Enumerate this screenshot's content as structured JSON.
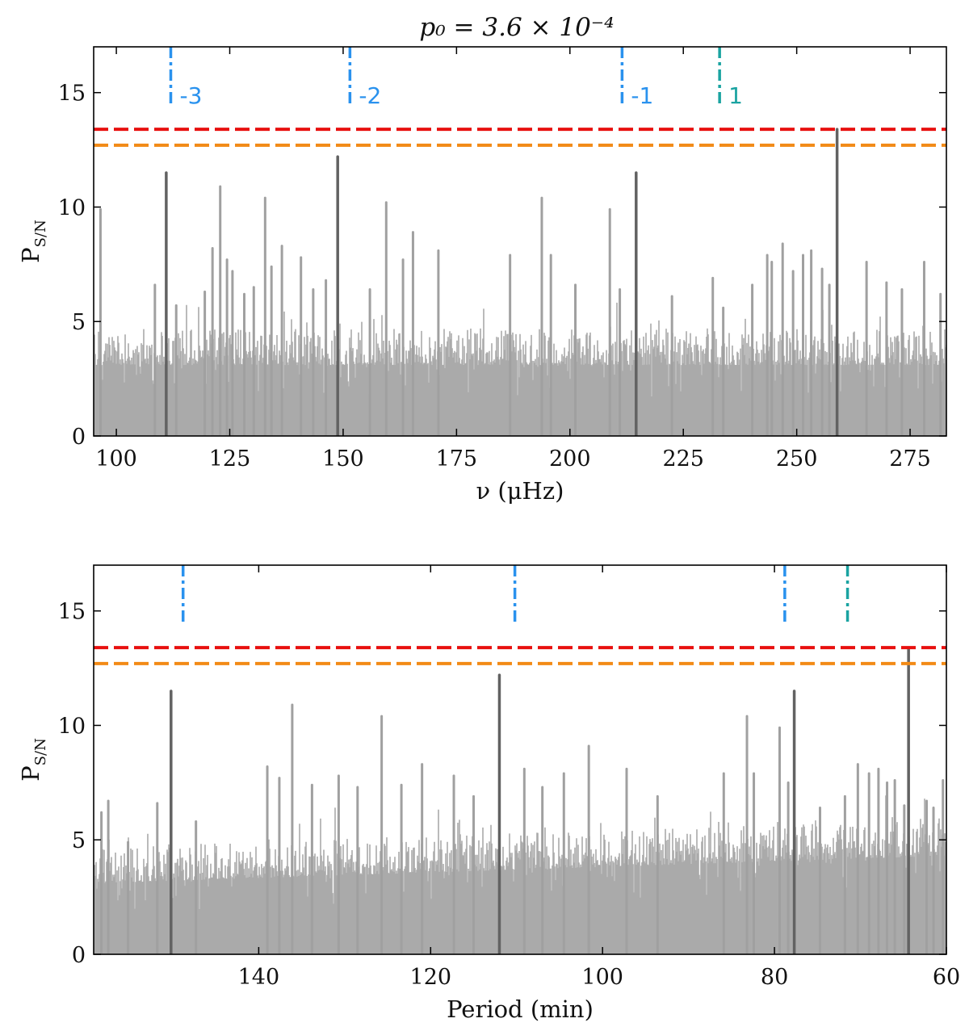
{
  "figure_title": "p₀ = 3.6 × 10⁻⁴",
  "colors": {
    "noise": "#aaaaaa",
    "peak_light": "#a0a0a0",
    "peak_dark": "#626262",
    "threshold_high": "#e8100f",
    "threshold_low": "#f28a16",
    "marker_negative": "#2a92ee",
    "marker_positive": "#1aa3a1"
  },
  "chart_data": [
    {
      "id": "frequency",
      "type": "line",
      "xlabel": "ν (μHz)",
      "ylabel": "P",
      "ylabel_sub": "S/N",
      "xlim": [
        95,
        283
      ],
      "ylim": [
        0,
        17
      ],
      "x_reversed": false,
      "x_ticks": [
        100,
        125,
        150,
        175,
        200,
        225,
        250,
        275
      ],
      "y_ticks": [
        0,
        5,
        10,
        15
      ],
      "thresholds": [
        {
          "value": 13.4,
          "color": "threshold_high"
        },
        {
          "value": 12.7,
          "color": "threshold_low"
        }
      ],
      "markers": [
        {
          "x": 112,
          "label": "-3",
          "color": "marker_negative"
        },
        {
          "x": 151.5,
          "label": "-2",
          "color": "marker_negative"
        },
        {
          "x": 211.5,
          "label": "-1",
          "color": "marker_negative"
        },
        {
          "x": 233,
          "label": "1",
          "color": "marker_positive"
        }
      ],
      "dark_peaks": [
        {
          "x": 111,
          "y": 11.5
        },
        {
          "x": 148.8,
          "y": 12.2
        },
        {
          "x": 214.6,
          "y": 11.5
        },
        {
          "x": 258.9,
          "y": 13.4
        }
      ],
      "light_peaks": [
        {
          "x": 96.5,
          "y": 9.9
        },
        {
          "x": 108.5,
          "y": 6.6
        },
        {
          "x": 113.2,
          "y": 5.7
        },
        {
          "x": 119.5,
          "y": 6.3
        },
        {
          "x": 121.2,
          "y": 8.2
        },
        {
          "x": 122.9,
          "y": 10.9
        },
        {
          "x": 124.4,
          "y": 7.7
        },
        {
          "x": 125.6,
          "y": 7.2
        },
        {
          "x": 128.2,
          "y": 6.2
        },
        {
          "x": 130.3,
          "y": 6.5
        },
        {
          "x": 132.8,
          "y": 10.4
        },
        {
          "x": 134.2,
          "y": 7.4
        },
        {
          "x": 136.5,
          "y": 8.3
        },
        {
          "x": 140.7,
          "y": 7.8
        },
        {
          "x": 143.4,
          "y": 6.4
        },
        {
          "x": 146.2,
          "y": 6.8
        },
        {
          "x": 155.9,
          "y": 6.4
        },
        {
          "x": 159.5,
          "y": 10.2
        },
        {
          "x": 163.2,
          "y": 7.7
        },
        {
          "x": 165.4,
          "y": 8.9
        },
        {
          "x": 171,
          "y": 8.1
        },
        {
          "x": 186.8,
          "y": 7.9
        },
        {
          "x": 193.8,
          "y": 10.4
        },
        {
          "x": 195.8,
          "y": 7.9
        },
        {
          "x": 201.2,
          "y": 6.6
        },
        {
          "x": 208.8,
          "y": 9.9
        },
        {
          "x": 211,
          "y": 6.4
        },
        {
          "x": 222.5,
          "y": 6.1
        },
        {
          "x": 231.5,
          "y": 6.9
        },
        {
          "x": 233.8,
          "y": 5.6
        },
        {
          "x": 240.2,
          "y": 6.6
        },
        {
          "x": 243.5,
          "y": 7.9
        },
        {
          "x": 244.5,
          "y": 7.6
        },
        {
          "x": 246.9,
          "y": 8.4
        },
        {
          "x": 249.2,
          "y": 7.2
        },
        {
          "x": 251.4,
          "y": 7.9
        },
        {
          "x": 253.2,
          "y": 8.1
        },
        {
          "x": 255.6,
          "y": 7.3
        },
        {
          "x": 257.2,
          "y": 6.6
        },
        {
          "x": 265.4,
          "y": 7.6
        },
        {
          "x": 269.8,
          "y": 6.7
        },
        {
          "x": 273.2,
          "y": 6.4
        },
        {
          "x": 278.1,
          "y": 7.6
        },
        {
          "x": 281.7,
          "y": 6.2
        }
      ],
      "baseline": {
        "x_start": 95,
        "x_end": 283,
        "level": 3.8
      }
    },
    {
      "id": "period",
      "type": "line",
      "xlabel": "Period (min)",
      "ylabel": "P",
      "ylabel_sub": "S/N",
      "xlim": [
        159.2,
        60
      ],
      "ylim": [
        0,
        17
      ],
      "x_reversed": true,
      "x_ticks": [
        140,
        120,
        100,
        80,
        60
      ],
      "y_ticks": [
        0,
        5,
        10,
        15
      ],
      "thresholds": [
        {
          "value": 13.4,
          "color": "threshold_high"
        },
        {
          "value": 12.7,
          "color": "threshold_low"
        }
      ],
      "markers": [
        {
          "x": 148.8,
          "label": "",
          "color": "marker_negative"
        },
        {
          "x": 110.2,
          "label": "",
          "color": "marker_negative"
        },
        {
          "x": 78.8,
          "label": "",
          "color": "marker_negative"
        },
        {
          "x": 71.5,
          "label": "",
          "color": "marker_positive"
        }
      ],
      "dark_peaks": [
        {
          "x": 150.2,
          "y": 11.5
        },
        {
          "x": 112,
          "y": 12.2
        },
        {
          "x": 77.7,
          "y": 11.5
        },
        {
          "x": 64.4,
          "y": 13.4
        }
      ],
      "light_peaks": [
        {
          "x": 158.3,
          "y": 6.2
        },
        {
          "x": 157.5,
          "y": 6.7
        },
        {
          "x": 155.2,
          "y": 4.9
        },
        {
          "x": 151.8,
          "y": 6.6
        },
        {
          "x": 147.3,
          "y": 5.8
        },
        {
          "x": 139,
          "y": 8.2
        },
        {
          "x": 137.6,
          "y": 7.7
        },
        {
          "x": 136.1,
          "y": 10.9
        },
        {
          "x": 133.8,
          "y": 7.4
        },
        {
          "x": 130.7,
          "y": 7.8
        },
        {
          "x": 128.5,
          "y": 7.3
        },
        {
          "x": 125.7,
          "y": 10.4
        },
        {
          "x": 123.4,
          "y": 7.4
        },
        {
          "x": 121,
          "y": 8.3
        },
        {
          "x": 117.3,
          "y": 7.8
        },
        {
          "x": 115,
          "y": 6.9
        },
        {
          "x": 109.1,
          "y": 8.1
        },
        {
          "x": 107,
          "y": 7.3
        },
        {
          "x": 104.5,
          "y": 7.9
        },
        {
          "x": 101.6,
          "y": 9.1
        },
        {
          "x": 97.2,
          "y": 8.1
        },
        {
          "x": 93.6,
          "y": 6.9
        },
        {
          "x": 85.9,
          "y": 7.9
        },
        {
          "x": 83.2,
          "y": 10.4
        },
        {
          "x": 82.4,
          "y": 7.9
        },
        {
          "x": 79.4,
          "y": 9.9
        },
        {
          "x": 78.4,
          "y": 7.5
        },
        {
          "x": 74.7,
          "y": 6.4
        },
        {
          "x": 71.8,
          "y": 6.9
        },
        {
          "x": 70.3,
          "y": 8.3
        },
        {
          "x": 69,
          "y": 7.9
        },
        {
          "x": 67.9,
          "y": 8.1
        },
        {
          "x": 66.9,
          "y": 7.5
        },
        {
          "x": 66,
          "y": 7.6
        },
        {
          "x": 64.9,
          "y": 6.5
        },
        {
          "x": 62.3,
          "y": 6.7
        },
        {
          "x": 61.5,
          "y": 6.4
        },
        {
          "x": 60.4,
          "y": 7.6
        }
      ],
      "baseline": {
        "x_start": 159.2,
        "x_end": 60,
        "level": 3.8
      }
    }
  ]
}
